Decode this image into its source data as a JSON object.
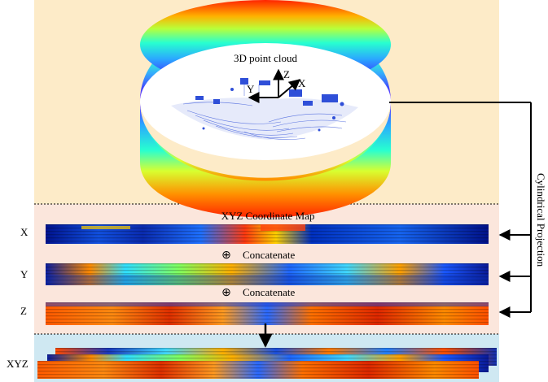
{
  "labels": {
    "point_cloud": "3D point cloud",
    "axis_x": "X",
    "axis_y": "Y",
    "axis_z": "Z",
    "coord_map_title": "XYZ Coordinate Map",
    "row_x": "X",
    "row_y": "Y",
    "row_z": "Z",
    "concat_symbol": "⊕",
    "concat_1": "Concatenate",
    "concat_2": "Concatenate",
    "row_xyz": "XYZ",
    "projection": "Cylindrical Projection"
  },
  "colors": {
    "top_panel": "#fdebc8",
    "middle_panel": "#fbe6dc",
    "bottom_panel": "#cfe8f2",
    "ring_top": "#ff2a00",
    "ring_mid": "#60ff90",
    "ring_bottom": "#2a1cff",
    "points": "#2f4fd8",
    "map_dark": "#000f8c",
    "map_mid": "#1a7dff",
    "map_hot": "#ff5a00"
  }
}
